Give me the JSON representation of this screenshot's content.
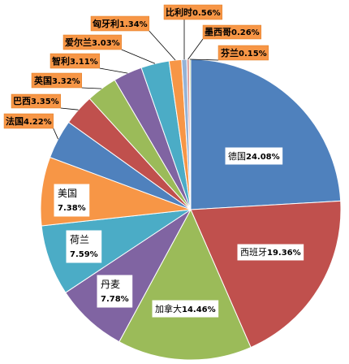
{
  "chart_data": {
    "type": "pie",
    "start_angle_deg": 0,
    "direction": "clockwise",
    "slices": [
      {
        "label": "德国",
        "value": 24.08,
        "value_text": "24.08%",
        "color": "#4f81bd",
        "label_style": "inside"
      },
      {
        "label": "西班牙",
        "value": 19.36,
        "value_text": "19.36%",
        "color": "#c0504d",
        "label_style": "inside"
      },
      {
        "label": "加拿大",
        "value": 14.46,
        "value_text": "14.46%",
        "color": "#9bbb59",
        "label_style": "inside"
      },
      {
        "label": "丹麦",
        "value": 7.78,
        "value_text": "7.78%",
        "color": "#8064a2",
        "label_style": "inside"
      },
      {
        "label": "荷兰",
        "value": 7.59,
        "value_text": "7.59%",
        "color": "#4bacc6",
        "label_style": "inside"
      },
      {
        "label": "美国",
        "value": 7.38,
        "value_text": "7.38%",
        "color": "#f79646",
        "label_style": "inside"
      },
      {
        "label": "法国",
        "value": 4.22,
        "value_text": "4.22%",
        "color": "#4f81bd",
        "label_style": "outside"
      },
      {
        "label": "巴西",
        "value": 3.35,
        "value_text": "3.35%",
        "color": "#c0504d",
        "label_style": "outside"
      },
      {
        "label": "英国",
        "value": 3.32,
        "value_text": "3.32%",
        "color": "#9bbb59",
        "label_style": "outside"
      },
      {
        "label": "智利",
        "value": 3.11,
        "value_text": "3.11%",
        "color": "#8064a2",
        "label_style": "outside"
      },
      {
        "label": "爱尔兰",
        "value": 3.03,
        "value_text": "3.03%",
        "color": "#4bacc6",
        "label_style": "outside"
      },
      {
        "label": "匈牙利",
        "value": 1.34,
        "value_text": "1.34%",
        "color": "#f79646",
        "label_style": "outside"
      },
      {
        "label": "比利时",
        "value": 0.56,
        "value_text": "0.56%",
        "color": "#95b3d7",
        "label_style": "outside"
      },
      {
        "label": "墨西哥",
        "value": 0.26,
        "value_text": "0.26%",
        "color": "#d99694",
        "label_style": "outside"
      },
      {
        "label": "芬兰",
        "value": 0.15,
        "value_text": "0.15%",
        "color": "#c3d69b",
        "label_style": "outside"
      }
    ],
    "legend": "none"
  }
}
